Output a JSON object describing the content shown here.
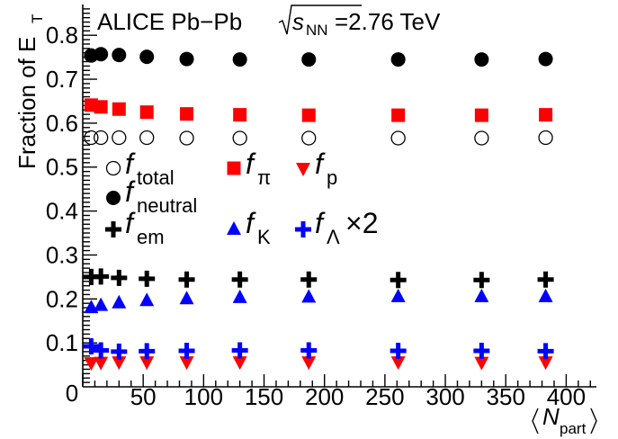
{
  "chart_data": {
    "type": "scatter",
    "title": "ALICE Pb−Pb",
    "energy_prefix": "s",
    "energy_subscript": "NN",
    "energy_value": "=2.76 TeV",
    "ylabel_main": "Fraction of E",
    "ylabel_sub": "T",
    "xlabel_main": "N",
    "xlabel_sub": "part",
    "xlim": [
      0,
      425
    ],
    "ylim": [
      0,
      0.87
    ],
    "x_ticks": [
      0,
      50,
      100,
      150,
      200,
      250,
      300,
      350,
      400
    ],
    "x_tick_labels": [
      "0",
      "50",
      "100",
      "150",
      "200",
      "250",
      "300",
      "350",
      "400"
    ],
    "y_ticks": [
      0.1,
      0.2,
      0.3,
      0.4,
      0.5,
      0.6,
      0.7,
      0.8
    ],
    "y_tick_labels": [
      "0.1",
      "0.2",
      "0.3",
      "0.4",
      "0.5",
      "0.6",
      "0.7",
      "0.8"
    ],
    "y_origin_label": "0",
    "x": [
      7,
      15,
      30,
      53,
      86,
      130,
      187,
      261,
      330,
      383
    ],
    "series": [
      {
        "key": "total",
        "symbol": "f",
        "sub": "total",
        "marker": "open-circle",
        "color": "#000000",
        "values": [
          0.567,
          0.567,
          0.567,
          0.567,
          0.566,
          0.566,
          0.566,
          0.566,
          0.566,
          0.567
        ]
      },
      {
        "key": "neutral",
        "symbol": "f",
        "sub": "neutral",
        "marker": "filled-circle",
        "color": "#000000",
        "values": [
          0.754,
          0.757,
          0.755,
          0.751,
          0.746,
          0.745,
          0.745,
          0.745,
          0.745,
          0.746
        ]
      },
      {
        "key": "em",
        "symbol": "f",
        "sub": "em",
        "marker": "cross",
        "color": "#000000",
        "values": [
          0.25,
          0.251,
          0.248,
          0.246,
          0.244,
          0.244,
          0.244,
          0.243,
          0.243,
          0.244
        ]
      },
      {
        "key": "pi",
        "symbol": "f",
        "sub": "π",
        "marker": "square",
        "color": "#ff0000",
        "values": [
          0.641,
          0.637,
          0.632,
          0.625,
          0.621,
          0.619,
          0.618,
          0.618,
          0.618,
          0.619
        ]
      },
      {
        "key": "K",
        "symbol": "f",
        "sub": "K",
        "marker": "triangle-up",
        "color": "#0000ff",
        "values": [
          0.18,
          0.185,
          0.191,
          0.196,
          0.2,
          0.203,
          0.204,
          0.205,
          0.205,
          0.205
        ]
      },
      {
        "key": "p",
        "symbol": "f",
        "sub": "p",
        "marker": "triangle-down",
        "color": "#ff0000",
        "values": [
          0.055,
          0.056,
          0.057,
          0.057,
          0.057,
          0.057,
          0.057,
          0.057,
          0.056,
          0.057
        ]
      },
      {
        "key": "lambda",
        "symbol": "f",
        "sub": "Λ",
        "suffix": "×2",
        "marker": "cross",
        "color": "#0000ff",
        "values": [
          0.092,
          0.083,
          0.08,
          0.081,
          0.082,
          0.083,
          0.083,
          0.082,
          0.082,
          0.081
        ]
      }
    ]
  }
}
